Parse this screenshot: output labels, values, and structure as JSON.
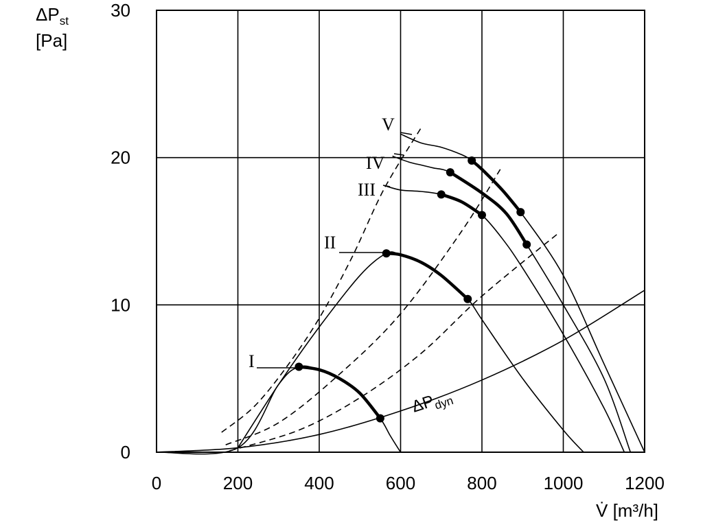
{
  "chart_data": {
    "type": "line",
    "ylabel_symbol": "ΔP",
    "ylabel_sub": "st",
    "ylabel_unit": "[Pa]",
    "xlabel": "V̇ [m³/h]",
    "xlim": [
      0,
      1200
    ],
    "ylim": [
      0,
      30
    ],
    "xticks": [
      "0",
      "200",
      "400",
      "600",
      "800",
      "1000",
      "1200"
    ],
    "yticks": [
      "0",
      "10",
      "20",
      "30"
    ],
    "grid": true,
    "series": [
      {
        "name": "I",
        "x": [
          0,
          200,
          300,
          350,
          400,
          450,
          500,
          550,
          575,
          600
        ],
        "y": [
          0.0,
          0.3,
          4.6,
          5.8,
          5.6,
          5.0,
          4.0,
          2.3,
          1.1,
          0
        ],
        "operating_range": [
          [
            350,
            5.8
          ],
          [
            550,
            2.3
          ]
        ]
      },
      {
        "name": "II",
        "x": [
          200,
          300,
          400,
          500,
          565,
          600,
          650,
          700,
          765,
          800,
          900,
          1000,
          1050
        ],
        "y": [
          0.3,
          4.6,
          8.5,
          12.0,
          13.5,
          13.4,
          12.9,
          12.0,
          10.4,
          9.0,
          5.0,
          1.5,
          0
        ],
        "operating_range": [
          [
            565,
            13.5
          ],
          [
            765,
            10.4
          ]
        ]
      },
      {
        "name": "III",
        "x": [
          560,
          600,
          650,
          700,
          750,
          800,
          850,
          900,
          1000,
          1100,
          1150
        ],
        "y": [
          18.1,
          17.8,
          17.7,
          17.5,
          17.0,
          16.1,
          14.5,
          12.5,
          8.0,
          3.0,
          0
        ],
        "operating_range": [
          [
            700,
            17.5
          ],
          [
            800,
            16.1
          ]
        ]
      },
      {
        "name": "IV",
        "x": [
          580,
          620,
          650,
          680,
          722,
          800,
          860,
          910,
          1000,
          1100,
          1165
        ],
        "y": [
          20.1,
          19.7,
          19.5,
          19.3,
          19.0,
          17.6,
          16.2,
          14.1,
          10.0,
          5.0,
          0
        ],
        "operating_range": [
          [
            722,
            19.0
          ],
          [
            910,
            14.1
          ]
        ]
      },
      {
        "name": "V",
        "x": [
          600,
          650,
          700,
          750,
          775,
          800,
          850,
          895,
          1000,
          1100,
          1200
        ],
        "y": [
          21.6,
          21.0,
          20.7,
          20.2,
          19.8,
          19.2,
          17.8,
          16.3,
          12.0,
          6.0,
          0
        ],
        "operating_range": [
          [
            775,
            19.8
          ],
          [
            895,
            16.3
          ]
        ]
      },
      {
        "name": "ΔPdyn",
        "x": [
          0,
          200,
          400,
          600,
          800,
          1000,
          1200
        ],
        "y": [
          0,
          0.3,
          1.2,
          2.8,
          4.9,
          7.6,
          11.0
        ]
      }
    ],
    "system_curves": [
      {
        "style": "dashed",
        "x": [
          160,
          240,
          320,
          400,
          480,
          560,
          650
        ],
        "y": [
          1.35,
          3.1,
          5.8,
          9.1,
          13.2,
          17.9,
          22.0
        ]
      },
      {
        "style": "dashed",
        "x": [
          170,
          300,
          450,
          600,
          750,
          845
        ],
        "y": [
          0.5,
          2.0,
          5.3,
          9.4,
          15.0,
          19.2
        ]
      },
      {
        "style": "dashed",
        "x": [
          180,
          350,
          500,
          650,
          800,
          985
        ],
        "y": [
          0.1,
          1.5,
          3.7,
          6.7,
          10.6,
          14.8
        ]
      }
    ],
    "labels": {
      "I": "I",
      "II": "II",
      "III": "III",
      "IV": "IV",
      "V": "V",
      "dyn_symbol": "ΔP",
      "dyn_sub": "dyn"
    }
  }
}
